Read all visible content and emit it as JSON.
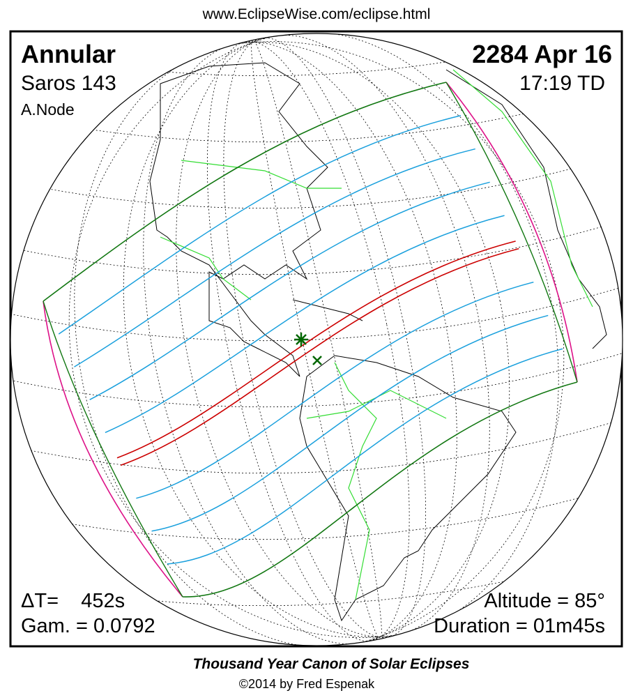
{
  "header": {
    "url": "www.EclipseWise.com/eclipse.html"
  },
  "map": {
    "eclipse_type": "Annular",
    "saros": "Saros 143",
    "node": "A.Node",
    "date": "2284 Apr 16",
    "time": "17:19 TD",
    "delta_t": "ΔT=    452s",
    "gamma": "Gam. = 0.0792",
    "altitude": "Altitude = 85°",
    "duration": "Duration = 01m45s"
  },
  "footer": {
    "title": "Thousand Year Canon of Solar Eclipses",
    "credit": "©2014 by Fred Espenak"
  }
}
